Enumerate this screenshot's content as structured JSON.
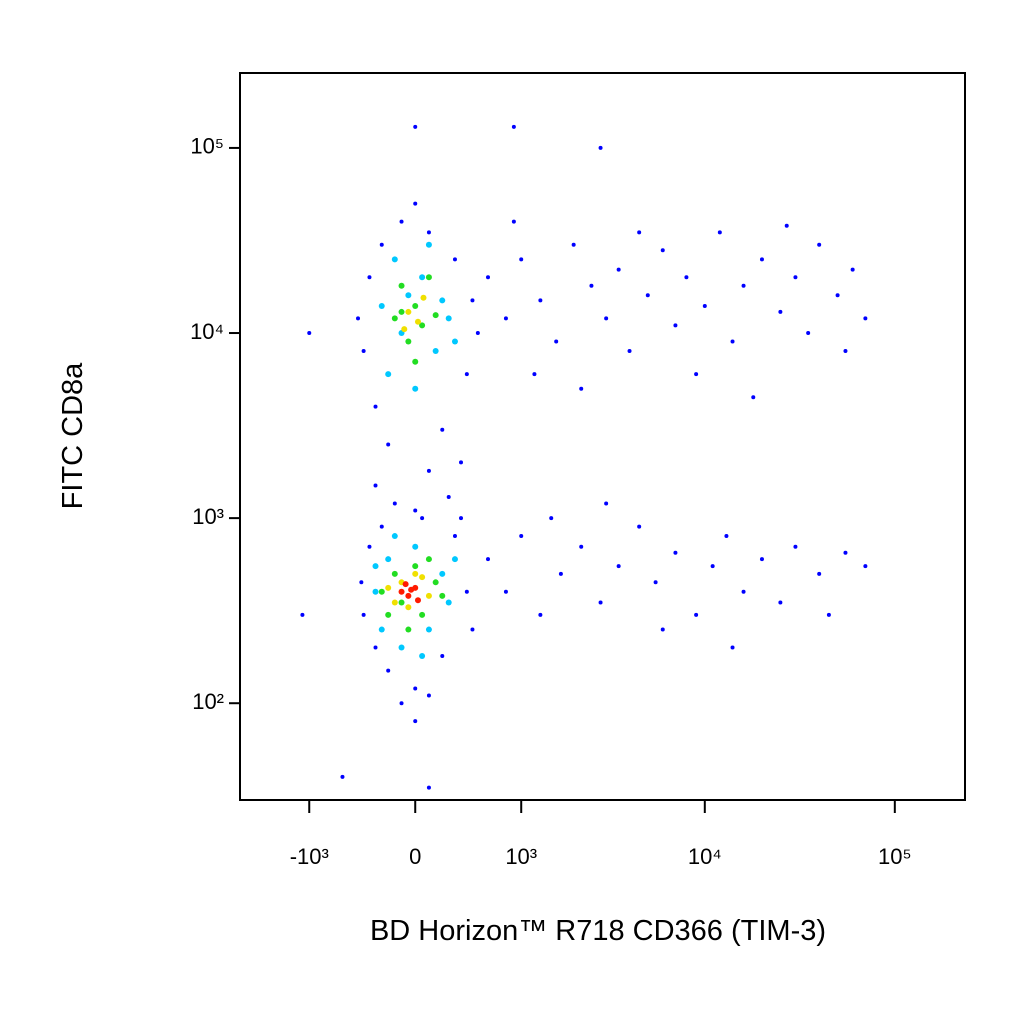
{
  "chart_data": {
    "type": "scatter",
    "x_label": "BD Horizon™ R718 CD366 (TIM-3)",
    "y_label": "FITC CD8a",
    "xscale": "biexponential",
    "yscale": "log",
    "xlim": [
      -2470,
      234000
    ],
    "ylim": [
      30,
      254000
    ],
    "xticks": [
      {
        "value": -1000,
        "label": "-10³"
      },
      0,
      {
        "value": 1000,
        "label": "10³"
      },
      {
        "value": 10000,
        "label": "10⁴"
      },
      {
        "value": 100000,
        "label": "10⁵"
      }
    ],
    "yticks": [
      {
        "value": 100,
        "label": "10²"
      },
      {
        "value": 1000,
        "label": "10³"
      },
      {
        "value": 10000,
        "label": "10⁴"
      },
      {
        "value": 100000,
        "label": "10⁵"
      }
    ],
    "series": [
      {
        "color": "#0000ff",
        "x": [
          600,
          800,
          1000,
          1300,
          1600,
          2000,
          2500,
          3000,
          3500,
          4000,
          5000,
          6000,
          7000,
          8000,
          10000,
          12000,
          14000,
          16000,
          20000,
          25000,
          30000,
          35000,
          40000,
          50000,
          60000,
          70000,
          1200,
          2200,
          9000,
          18000,
          4500,
          27000,
          900,
          55000,
          600,
          800,
          1000,
          1300,
          1700,
          2200,
          2800,
          3500,
          4500,
          5500,
          7000,
          9000,
          11000,
          13000,
          16000,
          20000,
          25000,
          30000,
          40000,
          55000,
          70000,
          1500,
          6000,
          14000,
          45000,
          3000,
          -400,
          -350,
          -300,
          -250,
          -200,
          -100,
          0,
          100,
          200,
          300,
          400,
          450,
          350,
          -300,
          100,
          250,
          0,
          -150,
          500,
          -450,
          -400,
          -350,
          -300,
          -250,
          -200,
          -100,
          0,
          100,
          200,
          300,
          400,
          450,
          350,
          -420,
          0,
          50,
          0,
          900,
          2800,
          -1000,
          -1100,
          -600,
          100
        ],
        "y": [
          20000,
          12000,
          25000,
          15000,
          9000,
          30000,
          18000,
          12000,
          22000,
          8000,
          16000,
          28000,
          11000,
          20000,
          14000,
          35000,
          9000,
          18000,
          25000,
          13000,
          20000,
          10000,
          30000,
          16000,
          22000,
          12000,
          6000,
          5000,
          6000,
          4500,
          35000,
          38000,
          40000,
          8000,
          600,
          400,
          800,
          300,
          500,
          700,
          350,
          550,
          900,
          450,
          650,
          300,
          550,
          800,
          400,
          600,
          350,
          700,
          500,
          650,
          550,
          1000,
          250,
          200,
          300,
          1200,
          8000,
          20000,
          4000,
          30000,
          2500,
          40000,
          50000,
          35000,
          3000,
          25000,
          6000,
          15000,
          2000,
          1500,
          1800,
          1300,
          1100,
          1200,
          10000,
          12000,
          300,
          700,
          200,
          900,
          150,
          100,
          120,
          110,
          180,
          800,
          400,
          250,
          1000,
          450,
          80,
          1000,
          130000,
          130000,
          100000,
          10000,
          300,
          40,
          35
        ]
      },
      {
        "color": "#00c8ff",
        "x": [
          -200,
          -150,
          -100,
          0,
          50,
          150,
          200,
          250,
          -250,
          100,
          -50,
          300,
          -300,
          -250,
          -200,
          -100,
          0,
          100,
          200,
          250,
          300,
          -150,
          50,
          -300
        ],
        "y": [
          6000,
          25000,
          10000,
          5000,
          20000,
          8000,
          15000,
          12000,
          14000,
          30000,
          16000,
          9000,
          400,
          250,
          600,
          200,
          700,
          250,
          500,
          350,
          600,
          800,
          180,
          550
        ]
      },
      {
        "color": "#22dd22",
        "x": [
          -150,
          -100,
          -50,
          0,
          50,
          100,
          150,
          0,
          -100,
          -250,
          -200,
          -150,
          -100,
          0,
          50,
          150,
          200,
          100,
          -50
        ],
        "y": [
          12000,
          18000,
          9000,
          14000,
          11000,
          20000,
          12500,
          7000,
          13000,
          400,
          300,
          500,
          350,
          550,
          300,
          450,
          380,
          600,
          250
        ]
      },
      {
        "color": "#f0e000",
        "x": [
          -50,
          20,
          60,
          -80,
          -200,
          -100,
          -50,
          50,
          100,
          -150,
          0
        ],
        "y": [
          13000,
          11500,
          15500,
          10500,
          420,
          450,
          330,
          480,
          380,
          350,
          500
        ]
      },
      {
        "color": "#ff1a00",
        "x": [
          -100,
          -50,
          0,
          -70,
          20,
          -30
        ],
        "y": [
          400,
          380,
          420,
          440,
          360,
          410
        ]
      }
    ]
  }
}
